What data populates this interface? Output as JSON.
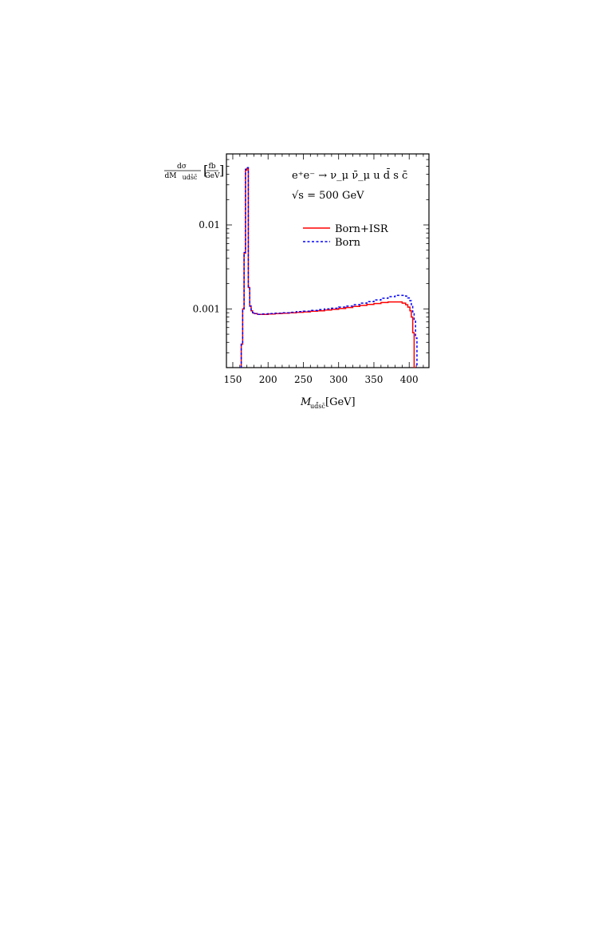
{
  "chart_data": {
    "type": "line",
    "drawstyle": "steps",
    "process_label": "e⁺e⁻ → ν_μ ν̄_μ u d̄ s c̄",
    "energy_label": "√s = 500 GeV",
    "ylabel_numerator": "dσ",
    "ylabel_denominator_main": "dM",
    "ylabel_denominator_sub": "uds̄c̄",
    "ylabel_unit_num": "fb",
    "ylabel_unit_den": "GeV",
    "xlabel_main": "M",
    "xlabel_sub": "ud̄sc̄",
    "xlabel_unit": "[GeV]",
    "xlim": [
      141,
      428
    ],
    "ylim": [
      0.0002,
      0.07
    ],
    "yscale": "log",
    "x_ticks": [
      150,
      200,
      250,
      300,
      350,
      400
    ],
    "x_tick_labels": [
      "150",
      "200",
      "250",
      "300",
      "350",
      "400"
    ],
    "y_ticks": [
      0.001,
      0.01
    ],
    "y_tick_labels": [
      "0.001",
      "0.01"
    ],
    "legend": "top-right",
    "grid": false,
    "series": [
      {
        "name": "Born+ISR",
        "color": "#ff0000",
        "style": "solid",
        "x": [
          160,
          162,
          164,
          166,
          168,
          170,
          172,
          174,
          176,
          178,
          180,
          185,
          190,
          200,
          210,
          220,
          230,
          240,
          250,
          260,
          270,
          280,
          290,
          300,
          310,
          320,
          330,
          340,
          350,
          360,
          370,
          380,
          390,
          395,
          398,
          401,
          403,
          405,
          407
        ],
        "y": [
          0.00015,
          0.00038,
          0.001,
          0.0046,
          0.045,
          0.047,
          0.0018,
          0.00108,
          0.00095,
          0.0009,
          0.00088,
          0.00086,
          0.00086,
          0.00087,
          0.00088,
          0.00089,
          0.0009,
          0.00091,
          0.00092,
          0.00094,
          0.00095,
          0.00097,
          0.00099,
          0.00101,
          0.00104,
          0.00107,
          0.0011,
          0.00113,
          0.00116,
          0.00119,
          0.00121,
          0.00121,
          0.00117,
          0.00112,
          0.00105,
          0.00095,
          0.0008,
          0.00052,
          0.0002
        ]
      },
      {
        "name": "Born",
        "color": "#0000ff",
        "style": "dashed",
        "x": [
          160,
          162,
          164,
          166,
          168,
          170,
          172,
          174,
          176,
          178,
          180,
          185,
          190,
          200,
          210,
          220,
          230,
          240,
          250,
          260,
          270,
          280,
          290,
          300,
          310,
          320,
          330,
          340,
          350,
          360,
          370,
          380,
          390,
          395,
          398,
          401,
          403,
          405,
          407,
          409
        ],
        "y": [
          0.00015,
          0.00038,
          0.001,
          0.0047,
          0.046,
          0.048,
          0.0018,
          0.00108,
          0.00095,
          0.0009,
          0.00088,
          0.00086,
          0.00087,
          0.00088,
          0.00089,
          0.0009,
          0.00091,
          0.00093,
          0.00094,
          0.00096,
          0.00098,
          0.001,
          0.00102,
          0.00105,
          0.00108,
          0.00112,
          0.00117,
          0.00122,
          0.00128,
          0.00134,
          0.0014,
          0.00145,
          0.00145,
          0.00142,
          0.00135,
          0.00125,
          0.0011,
          0.00092,
          0.00075,
          0.00045
        ]
      }
    ]
  }
}
